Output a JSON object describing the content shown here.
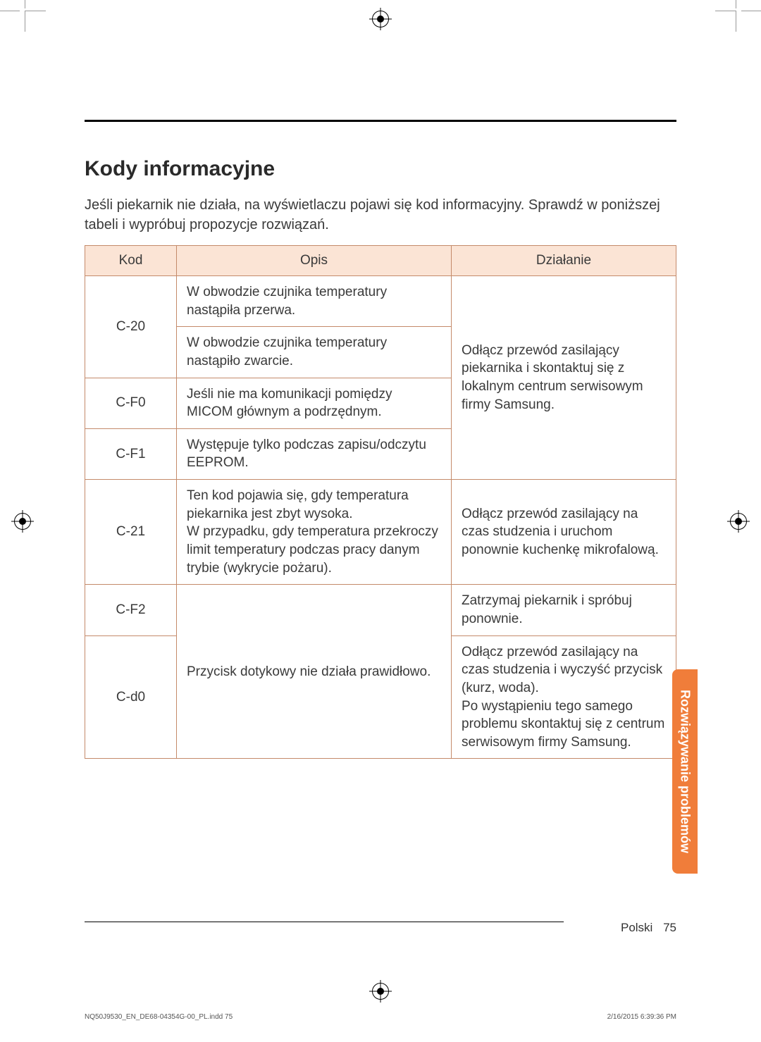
{
  "heading": "Kody informacyjne",
  "intro": "Jeśli piekarnik nie działa, na wyświetlaczu pojawi się kod informacyjny. Sprawdź w poniższej tabeli i wypróbuj propozycje rozwiązań.",
  "table": {
    "headers": {
      "code": "Kod",
      "desc": "Opis",
      "action": "Działanie"
    },
    "rows": {
      "r1a": {
        "code": "C-20",
        "desc": "W obwodzie czujnika temperatury nastąpiła przerwa."
      },
      "r1b": {
        "desc": "W obwodzie czujnika temperatury nastąpiło zwarcie."
      },
      "r2": {
        "code": "C-F0",
        "desc": "Jeśli nie ma komunikacji pomiędzy MICOM głównym a podrzędnym."
      },
      "r3": {
        "code": "C-F1",
        "desc": "Występuje tylko podczas zapisu/odczytu EEPROM."
      },
      "action_group1": "Odłącz przewód zasilający piekarnika i skontaktuj się z lokalnym centrum serwisowym firmy Samsung.",
      "r4": {
        "code": "C-21",
        "desc": "Ten kod pojawia się, gdy temperatura piekarnika jest zbyt wysoka.\nW przypadku, gdy temperatura przekroczy limit temperatury podczas pracy danym trybie (wykrycie pożaru).",
        "action": "Odłącz przewód zasilający na czas studzenia i uruchom ponownie kuchenkę mikrofalową."
      },
      "r5": {
        "code": "C-F2",
        "action": "Zatrzymaj piekarnik i spróbuj ponownie."
      },
      "r6": {
        "code": "C-d0",
        "desc": "Przycisk dotykowy nie działa prawidłowo.",
        "action": "Odłącz przewód zasilający na czas studzenia i wyczyść przycisk (kurz, woda).\nPo wystąpieniu tego samego problemu skontaktuj się z centrum serwisowym firmy Samsung."
      }
    }
  },
  "side_tab": "Rozwiązywanie problemów",
  "footer": {
    "lang": "Polski",
    "page": "75"
  },
  "print": {
    "left": "NQ50J9530_EN_DE68-04354G-00_PL.indd   75",
    "right": "2/16/2015   6:39:36 PM"
  },
  "colors": {
    "header_bg": "#fbe4d5",
    "border": "#c48a6a",
    "tab": "#f07d3a"
  }
}
